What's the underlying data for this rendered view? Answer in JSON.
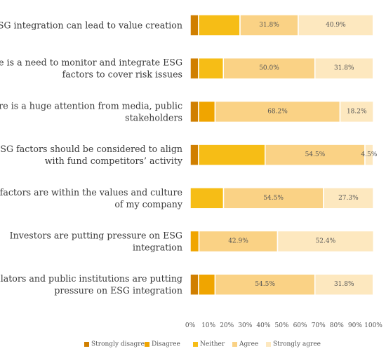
{
  "chart_data": {
    "type": "bar",
    "orientation": "horizontal",
    "stacked": true,
    "categories": [
      [
        "ESG integration can lead to value creation"
      ],
      [
        "There is a need to monitor and integrate ESG",
        "factors to cover risk issues"
      ],
      [
        "There is a huge attention from media, public",
        "stakeholders"
      ],
      [
        "ESG factors should be considered to align",
        "with fund competitors’ activity"
      ],
      [
        "ESG factors are within the values and culture",
        "of my company"
      ],
      [
        "Investors are putting pressure on ESG",
        "integration"
      ],
      [
        "Regulators and public institutions are putting",
        "pressure on ESG integration"
      ]
    ],
    "series": [
      {
        "name": "Strongly disagree",
        "color": "#D07F00",
        "values": [
          4.5,
          4.5,
          4.5,
          4.5,
          0,
          0,
          4.5
        ]
      },
      {
        "name": "Disagree",
        "color": "#F0A500",
        "values": [
          0,
          0,
          9.1,
          0,
          0,
          4.8,
          9.1
        ]
      },
      {
        "name": "Neither",
        "color": "#F6BD16",
        "values": [
          22.7,
          13.6,
          0,
          36.4,
          18.2,
          0,
          0
        ]
      },
      {
        "name": "Agree",
        "color": "#FAD285",
        "values": [
          31.8,
          50.0,
          68.2,
          54.5,
          54.5,
          42.9,
          54.5
        ]
      },
      {
        "name": "Strongly agree",
        "color": "#FDE8BF",
        "values": [
          40.9,
          31.8,
          18.2,
          4.5,
          27.3,
          52.4,
          31.8
        ]
      }
    ],
    "data_labels": [
      [
        null,
        null,
        null,
        "31.8%",
        "40.9%"
      ],
      [
        null,
        null,
        null,
        "50.0%",
        "31.8%"
      ],
      [
        null,
        null,
        null,
        "68.2%",
        "18.2%"
      ],
      [
        null,
        null,
        null,
        "54.5%",
        "4.5%"
      ],
      [
        null,
        null,
        null,
        "54.5%",
        "27.3%"
      ],
      [
        null,
        null,
        null,
        "42.9%",
        "52.4%"
      ],
      [
        null,
        null,
        null,
        "54.5%",
        "31.8%"
      ]
    ],
    "xlim": [
      0,
      100
    ],
    "xticks": [
      "0%",
      "10%",
      "20%",
      "30%",
      "40%",
      "50%",
      "60%",
      "70%",
      "80%",
      "90%",
      "100%"
    ],
    "grid": false,
    "legend_position": "bottom"
  }
}
